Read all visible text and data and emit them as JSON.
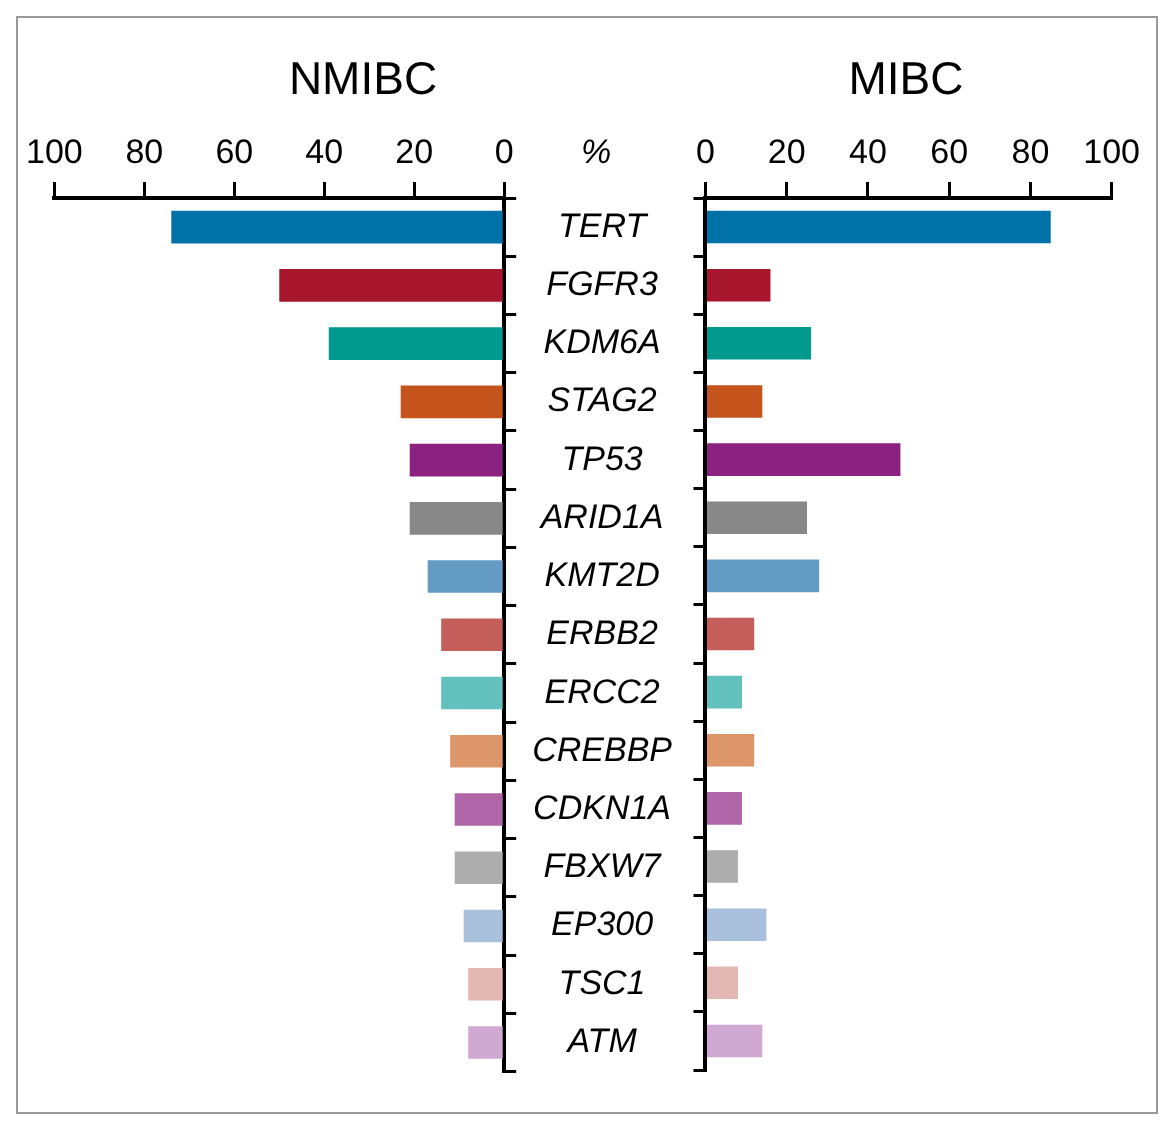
{
  "chart_data": [
    {
      "type": "bar",
      "title": "NMIBC",
      "orientation": "horizontal",
      "categories": [
        "TERT",
        "FGFR3",
        "KDM6A",
        "STAG2",
        "TP53",
        "ARID1A",
        "KMT2D",
        "ERBB2",
        "ERCC2",
        "CREBBP",
        "CDKN1A",
        "FBXW7",
        "EP300",
        "TSC1",
        "ATM"
      ],
      "values": [
        74,
        50,
        39,
        23,
        21,
        21,
        17,
        14,
        14,
        12,
        11,
        11,
        9,
        8,
        8
      ],
      "colors": [
        "#0072a8",
        "#a8162e",
        "#009a8e",
        "#c4531c",
        "#8b2180",
        "#888888",
        "#649bc4",
        "#c45e5a",
        "#62c0bd",
        "#dd956a",
        "#b065a8",
        "#adadad",
        "#a9c0dc",
        "#e4b8b2",
        "#cfa9d2"
      ],
      "xlim": [
        100,
        0
      ],
      "xticks": [
        100,
        80,
        60,
        40,
        20,
        0
      ],
      "grid": false,
      "annotations": [
        "%"
      ]
    },
    {
      "type": "bar",
      "title": "MIBC",
      "orientation": "horizontal",
      "categories": [
        null,
        null,
        null,
        null,
        null,
        null,
        null,
        null,
        null,
        null,
        null,
        null,
        null,
        null,
        null
      ],
      "values": [
        85,
        16,
        26,
        14,
        48,
        25,
        28,
        12,
        9,
        12,
        9,
        8,
        15,
        8,
        14
      ],
      "colors": [
        "#0072a8",
        "#a8162e",
        "#009a8e",
        "#c4531c",
        "#8b2180",
        "#888888",
        "#649bc4",
        "#c45e5a",
        "#62c0bd",
        "#dd956a",
        "#b065a8",
        "#adadad",
        "#a9c0dc",
        "#e4b8b2",
        "#cfa9d2"
      ],
      "xlim": [
        0,
        100
      ],
      "xticks": [
        0,
        20,
        40,
        60,
        80,
        100
      ],
      "grid": false,
      "tick_labels": "x"
    }
  ]
}
